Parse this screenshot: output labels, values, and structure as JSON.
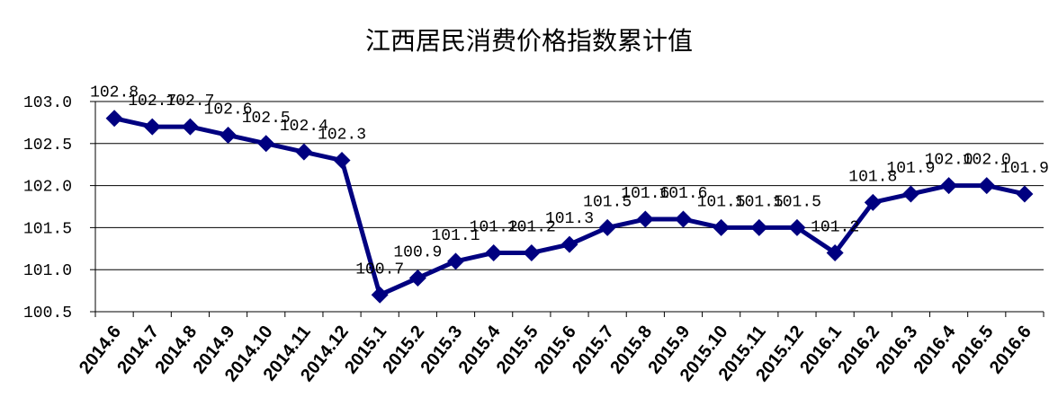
{
  "chart_data": {
    "type": "line",
    "title": "江西居民消费价格指数累计值",
    "categories": [
      "2014.6",
      "2014.7",
      "2014.8",
      "2014.9",
      "2014.10",
      "2014.11",
      "2014.12",
      "2015.1",
      "2015.2",
      "2015.3",
      "2015.4",
      "2015.5",
      "2015.6",
      "2015.7",
      "2015.8",
      "2015.9",
      "2015.10",
      "2015.11",
      "2015.12",
      "2016.1",
      "2016.2",
      "2016.3",
      "2016.4",
      "2016.5",
      "2016.6"
    ],
    "series": [
      {
        "values": [
          102.8,
          102.7,
          102.7,
          102.6,
          102.5,
          102.4,
          102.3,
          100.7,
          100.9,
          101.1,
          101.2,
          101.2,
          101.3,
          101.5,
          101.6,
          101.6,
          101.5,
          101.5,
          101.5,
          101.2,
          101.8,
          101.9,
          102.0,
          102.0,
          101.9
        ],
        "data_labels": [
          "102.8",
          "102.7",
          "102.7",
          "102.6",
          "102.5",
          "102.4",
          "102.3",
          "100.7",
          "100.9",
          "101.1",
          "101.2",
          "101.2",
          "101.3",
          "101.5",
          "101.6",
          "101.6",
          "101.5",
          "101.5",
          "101.5",
          "101.2",
          "101.8",
          "101.9",
          "102.0",
          "102.0",
          "101.9"
        ],
        "color": "#000080",
        "marker": "diamond"
      }
    ],
    "ylim": [
      100.5,
      103.0
    ],
    "yticks": [
      "100.5",
      "101.0",
      "101.5",
      "102.0",
      "102.5",
      "103.0"
    ],
    "grid": true,
    "legend": "none"
  }
}
